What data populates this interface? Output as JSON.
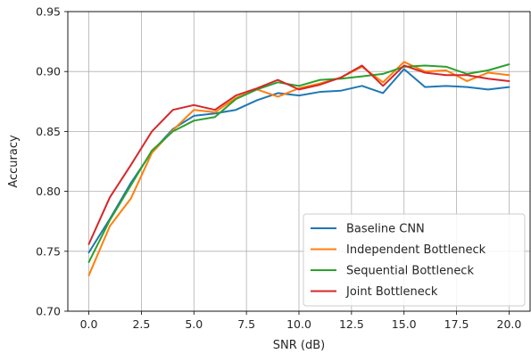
{
  "chart_data": {
    "type": "line",
    "xlabel": "SNR (dB)",
    "ylabel": "Accuracy",
    "xlim": [
      -1,
      21
    ],
    "ylim": [
      0.7,
      0.95
    ],
    "xticks": [
      0.0,
      2.5,
      5.0,
      7.5,
      10.0,
      12.5,
      15.0,
      17.5,
      20.0
    ],
    "xtick_labels": [
      "0.0",
      "2.5",
      "5.0",
      "7.5",
      "10.0",
      "12.5",
      "15.0",
      "17.5",
      "20.0"
    ],
    "yticks": [
      0.7,
      0.75,
      0.8,
      0.85,
      0.9,
      0.95
    ],
    "ytick_labels": [
      "0.70",
      "0.75",
      "0.80",
      "0.85",
      "0.90",
      "0.95"
    ],
    "grid": true,
    "legend_position": "bottom-right",
    "x": [
      0,
      1,
      2,
      3,
      4,
      5,
      6,
      7,
      8,
      9,
      10,
      11,
      12,
      13,
      14,
      15,
      16,
      17,
      18,
      19,
      20
    ],
    "series": [
      {
        "name": "Baseline CNN",
        "color": "#1f77b4",
        "values": [
          0.749,
          0.777,
          0.807,
          0.833,
          0.852,
          0.863,
          0.865,
          0.868,
          0.876,
          0.882,
          0.88,
          0.883,
          0.884,
          0.888,
          0.882,
          0.902,
          0.887,
          0.888,
          0.887,
          0.885,
          0.887
        ]
      },
      {
        "name": "Independent Bottleneck",
        "color": "#ff7f0e",
        "values": [
          0.73,
          0.771,
          0.794,
          0.832,
          0.851,
          0.868,
          0.866,
          0.878,
          0.885,
          0.879,
          0.886,
          0.89,
          0.895,
          0.904,
          0.891,
          0.908,
          0.9,
          0.901,
          0.892,
          0.899,
          0.897
        ]
      },
      {
        "name": "Sequential Bottleneck",
        "color": "#2ca02c",
        "values": [
          0.741,
          0.776,
          0.805,
          0.834,
          0.85,
          0.859,
          0.862,
          0.877,
          0.885,
          0.891,
          0.888,
          0.893,
          0.894,
          0.896,
          0.898,
          0.904,
          0.905,
          0.904,
          0.898,
          0.901,
          0.906
        ]
      },
      {
        "name": "Joint Bottleneck",
        "color": "#d62728",
        "values": [
          0.756,
          0.795,
          0.822,
          0.85,
          0.868,
          0.872,
          0.868,
          0.88,
          0.886,
          0.893,
          0.885,
          0.889,
          0.895,
          0.905,
          0.888,
          0.905,
          0.899,
          0.897,
          0.897,
          0.894,
          0.892
        ]
      }
    ]
  }
}
